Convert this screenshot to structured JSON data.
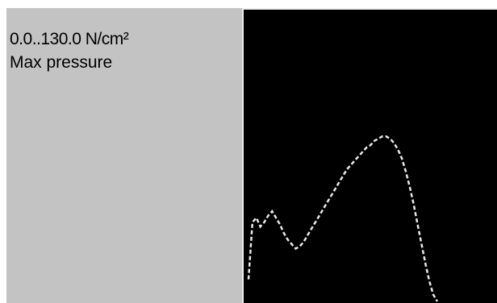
{
  "panel": {
    "range_label": "0.0..130.0 N/cm²",
    "metric_label": "Max pressure"
  },
  "colors": {
    "panel_bg": "#c3c3c3",
    "plot_bg": "#000000",
    "curve": "#e8e8e8"
  },
  "chart_data": {
    "type": "line",
    "ylim": [
      0,
      130
    ],
    "series": [
      {
        "values": [
          10,
          36,
          38,
          34,
          36,
          39,
          41,
          38,
          35,
          31,
          28,
          26,
          24,
          25,
          27,
          30,
          33,
          36,
          39,
          42,
          45,
          48,
          51,
          54,
          57,
          60,
          62,
          64,
          66,
          68,
          70,
          71,
          73,
          74,
          75,
          75,
          74,
          72,
          69,
          65,
          59,
          52,
          44,
          35,
          26,
          17,
          9,
          3,
          0
        ]
      }
    ]
  }
}
